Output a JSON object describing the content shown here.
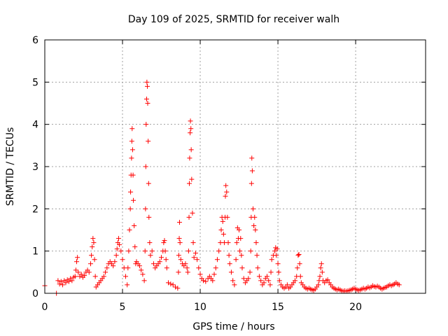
{
  "chart_data": {
    "type": "scatter",
    "title": "Day 109 of 2025, SRMTID for receiver walh",
    "xlabel": "GPS time / hours",
    "ylabel": "SRMTID / TECUs",
    "xlim": [
      0,
      24.5
    ],
    "ylim": [
      0,
      6
    ],
    "xticks": [
      0,
      5,
      10,
      15,
      20
    ],
    "yticks": [
      0,
      1,
      2,
      3,
      4,
      5,
      6
    ],
    "xtick_labels": [
      "0",
      "5",
      "10",
      "15",
      "20"
    ],
    "ytick_labels": [
      "0",
      "1",
      "2",
      "3",
      "4",
      "5",
      "6"
    ],
    "grid": true,
    "marker": "+",
    "color": "#ff0000",
    "series": [
      {
        "name": "SRMTID",
        "points": [
          [
            0.0,
            0.18
          ],
          [
            0.75,
            0.0
          ],
          [
            0.85,
            0.3
          ],
          [
            0.95,
            0.22
          ],
          [
            1.05,
            0.28
          ],
          [
            1.15,
            0.2
          ],
          [
            1.25,
            0.3
          ],
          [
            1.35,
            0.25
          ],
          [
            1.45,
            0.32
          ],
          [
            1.55,
            0.28
          ],
          [
            1.65,
            0.35
          ],
          [
            1.75,
            0.3
          ],
          [
            1.85,
            0.38
          ],
          [
            1.95,
            0.4
          ],
          [
            2.0,
            0.55
          ],
          [
            2.05,
            0.75
          ],
          [
            2.1,
            0.85
          ],
          [
            2.15,
            0.5
          ],
          [
            2.25,
            0.4
          ],
          [
            2.35,
            0.45
          ],
          [
            2.45,
            0.38
          ],
          [
            2.55,
            0.42
          ],
          [
            2.65,
            0.5
          ],
          [
            2.75,
            0.55
          ],
          [
            2.85,
            0.5
          ],
          [
            2.95,
            0.7
          ],
          [
            3.0,
            0.9
          ],
          [
            3.05,
            1.1
          ],
          [
            3.1,
            1.3
          ],
          [
            3.15,
            1.2
          ],
          [
            3.2,
            0.8
          ],
          [
            3.25,
            0.4
          ],
          [
            3.3,
            0.15
          ],
          [
            3.4,
            0.2
          ],
          [
            3.5,
            0.25
          ],
          [
            3.6,
            0.3
          ],
          [
            3.7,
            0.35
          ],
          [
            3.8,
            0.4
          ],
          [
            3.9,
            0.5
          ],
          [
            4.0,
            0.6
          ],
          [
            4.1,
            0.7
          ],
          [
            4.2,
            0.75
          ],
          [
            4.3,
            0.7
          ],
          [
            4.4,
            0.65
          ],
          [
            4.5,
            0.75
          ],
          [
            4.6,
            0.9
          ],
          [
            4.65,
            1.05
          ],
          [
            4.7,
            1.2
          ],
          [
            4.75,
            1.3
          ],
          [
            4.8,
            1.15
          ],
          [
            4.9,
            1.0
          ],
          [
            5.0,
            0.8
          ],
          [
            5.1,
            0.6
          ],
          [
            5.2,
            0.4
          ],
          [
            5.3,
            0.2
          ],
          [
            5.35,
            0.6
          ],
          [
            5.4,
            1.0
          ],
          [
            5.45,
            1.5
          ],
          [
            5.5,
            2.0
          ],
          [
            5.52,
            2.4
          ],
          [
            5.55,
            2.8
          ],
          [
            5.58,
            3.2
          ],
          [
            5.6,
            3.6
          ],
          [
            5.62,
            3.9
          ],
          [
            5.65,
            3.4
          ],
          [
            5.68,
            2.8
          ],
          [
            5.7,
            2.2
          ],
          [
            5.75,
            1.6
          ],
          [
            5.8,
            1.1
          ],
          [
            5.85,
            0.7
          ],
          [
            5.9,
            0.75
          ],
          [
            6.0,
            0.7
          ],
          [
            6.1,
            0.65
          ],
          [
            6.2,
            0.55
          ],
          [
            6.3,
            0.45
          ],
          [
            6.4,
            0.3
          ],
          [
            6.45,
            1.0
          ],
          [
            6.48,
            2.0
          ],
          [
            6.5,
            3.0
          ],
          [
            6.52,
            4.0
          ],
          [
            6.55,
            4.6
          ],
          [
            6.57,
            5.0
          ],
          [
            6.6,
            4.9
          ],
          [
            6.62,
            4.5
          ],
          [
            6.65,
            3.6
          ],
          [
            6.68,
            2.6
          ],
          [
            6.7,
            1.8
          ],
          [
            6.75,
            1.2
          ],
          [
            6.8,
            0.9
          ],
          [
            6.9,
            1.0
          ],
          [
            7.0,
            0.7
          ],
          [
            7.1,
            0.6
          ],
          [
            7.2,
            0.65
          ],
          [
            7.3,
            0.7
          ],
          [
            7.4,
            0.75
          ],
          [
            7.5,
            0.85
          ],
          [
            7.6,
            1.0
          ],
          [
            7.65,
            1.2
          ],
          [
            7.7,
            1.25
          ],
          [
            7.75,
            1.0
          ],
          [
            7.8,
            0.8
          ],
          [
            7.85,
            0.6
          ],
          [
            7.95,
            0.25
          ],
          [
            8.1,
            0.22
          ],
          [
            8.25,
            0.2
          ],
          [
            8.4,
            0.15
          ],
          [
            8.55,
            0.12
          ],
          [
            8.6,
            0.5
          ],
          [
            8.62,
            0.9
          ],
          [
            8.65,
            1.3
          ],
          [
            8.67,
            1.68
          ],
          [
            8.7,
            1.2
          ],
          [
            8.75,
            0.8
          ],
          [
            8.85,
            0.7
          ],
          [
            8.95,
            0.65
          ],
          [
            9.05,
            0.7
          ],
          [
            9.15,
            0.6
          ],
          [
            9.2,
            0.5
          ],
          [
            9.25,
            1.0
          ],
          [
            9.28,
            1.8
          ],
          [
            9.3,
            2.6
          ],
          [
            9.32,
            3.2
          ],
          [
            9.35,
            3.8
          ],
          [
            9.37,
            4.08
          ],
          [
            9.4,
            3.9
          ],
          [
            9.42,
            3.4
          ],
          [
            9.45,
            2.7
          ],
          [
            9.5,
            1.9
          ],
          [
            9.55,
            1.2
          ],
          [
            9.6,
            0.85
          ],
          [
            9.7,
            0.95
          ],
          [
            9.8,
            0.8
          ],
          [
            9.9,
            0.6
          ],
          [
            10.0,
            0.45
          ],
          [
            10.1,
            0.35
          ],
          [
            10.2,
            0.3
          ],
          [
            10.35,
            0.28
          ],
          [
            10.5,
            0.35
          ],
          [
            10.6,
            0.4
          ],
          [
            10.7,
            0.35
          ],
          [
            10.8,
            0.3
          ],
          [
            10.9,
            0.45
          ],
          [
            11.0,
            0.6
          ],
          [
            11.1,
            0.8
          ],
          [
            11.2,
            1.0
          ],
          [
            11.3,
            1.2
          ],
          [
            11.35,
            1.5
          ],
          [
            11.4,
            1.8
          ],
          [
            11.45,
            1.7
          ],
          [
            11.5,
            1.4
          ],
          [
            11.55,
            1.2
          ],
          [
            11.6,
            1.8
          ],
          [
            11.62,
            2.3
          ],
          [
            11.65,
            2.55
          ],
          [
            11.7,
            2.4
          ],
          [
            11.75,
            1.8
          ],
          [
            11.8,
            1.2
          ],
          [
            11.85,
            0.9
          ],
          [
            11.9,
            0.7
          ],
          [
            12.0,
            0.5
          ],
          [
            12.1,
            0.3
          ],
          [
            12.2,
            0.2
          ],
          [
            12.3,
            0.8
          ],
          [
            12.35,
            1.2
          ],
          [
            12.4,
            1.55
          ],
          [
            12.45,
            1.3
          ],
          [
            12.5,
            1.5
          ],
          [
            12.55,
            1.0
          ],
          [
            12.6,
            1.3
          ],
          [
            12.65,
            0.9
          ],
          [
            12.7,
            0.6
          ],
          [
            12.8,
            0.35
          ],
          [
            12.9,
            0.25
          ],
          [
            13.0,
            0.3
          ],
          [
            13.1,
            0.35
          ],
          [
            13.2,
            0.5
          ],
          [
            13.25,
            1.0
          ],
          [
            13.28,
            1.8
          ],
          [
            13.3,
            2.6
          ],
          [
            13.32,
            3.2
          ],
          [
            13.35,
            2.9
          ],
          [
            13.4,
            2.0
          ],
          [
            13.45,
            1.6
          ],
          [
            13.5,
            1.8
          ],
          [
            13.55,
            1.5
          ],
          [
            13.6,
            1.2
          ],
          [
            13.65,
            0.9
          ],
          [
            13.7,
            0.6
          ],
          [
            13.8,
            0.4
          ],
          [
            13.9,
            0.3
          ],
          [
            14.0,
            0.2
          ],
          [
            14.1,
            0.25
          ],
          [
            14.2,
            0.35
          ],
          [
            14.3,
            0.4
          ],
          [
            14.4,
            0.3
          ],
          [
            14.5,
            0.2
          ],
          [
            14.55,
            0.5
          ],
          [
            14.6,
            0.8
          ],
          [
            14.7,
            0.9
          ],
          [
            14.8,
            1.0
          ],
          [
            14.85,
            1.08
          ],
          [
            14.9,
            0.9
          ],
          [
            14.95,
            1.05
          ],
          [
            15.0,
            0.7
          ],
          [
            15.05,
            0.5
          ],
          [
            15.1,
            0.3
          ],
          [
            15.2,
            0.2
          ],
          [
            15.3,
            0.15
          ],
          [
            15.4,
            0.12
          ],
          [
            15.5,
            0.15
          ],
          [
            15.6,
            0.2
          ],
          [
            15.7,
            0.12
          ],
          [
            15.8,
            0.15
          ],
          [
            15.9,
            0.2
          ],
          [
            16.0,
            0.25
          ],
          [
            16.1,
            0.3
          ],
          [
            16.2,
            0.4
          ],
          [
            16.25,
            0.6
          ],
          [
            16.3,
            0.9
          ],
          [
            16.35,
            0.92
          ],
          [
            16.4,
            0.7
          ],
          [
            16.45,
            0.4
          ],
          [
            16.5,
            0.25
          ],
          [
            16.6,
            0.2
          ],
          [
            16.7,
            0.15
          ],
          [
            16.8,
            0.12
          ],
          [
            16.9,
            0.1
          ],
          [
            17.0,
            0.12
          ],
          [
            17.1,
            0.1
          ],
          [
            17.2,
            0.08
          ],
          [
            17.3,
            0.07
          ],
          [
            17.4,
            0.1
          ],
          [
            17.5,
            0.15
          ],
          [
            17.6,
            0.2
          ],
          [
            17.65,
            0.3
          ],
          [
            17.7,
            0.4
          ],
          [
            17.75,
            0.6
          ],
          [
            17.8,
            0.7
          ],
          [
            17.85,
            0.5
          ],
          [
            17.9,
            0.3
          ],
          [
            18.0,
            0.25
          ],
          [
            18.1,
            0.3
          ],
          [
            18.2,
            0.32
          ],
          [
            18.3,
            0.25
          ],
          [
            18.4,
            0.2
          ],
          [
            18.5,
            0.15
          ],
          [
            18.6,
            0.12
          ],
          [
            18.7,
            0.1
          ],
          [
            18.8,
            0.08
          ],
          [
            18.9,
            0.1
          ],
          [
            19.0,
            0.08
          ],
          [
            19.1,
            0.06
          ],
          [
            19.2,
            0.05
          ],
          [
            19.3,
            0.06
          ],
          [
            19.4,
            0.05
          ],
          [
            19.5,
            0.06
          ],
          [
            19.6,
            0.07
          ],
          [
            19.7,
            0.08
          ],
          [
            19.8,
            0.1
          ],
          [
            19.9,
            0.12
          ],
          [
            20.0,
            0.1
          ],
          [
            20.1,
            0.08
          ],
          [
            20.2,
            0.07
          ],
          [
            20.3,
            0.08
          ],
          [
            20.4,
            0.1
          ],
          [
            20.5,
            0.12
          ],
          [
            20.6,
            0.1
          ],
          [
            20.7,
            0.12
          ],
          [
            20.8,
            0.15
          ],
          [
            20.9,
            0.13
          ],
          [
            21.0,
            0.15
          ],
          [
            21.1,
            0.18
          ],
          [
            21.2,
            0.16
          ],
          [
            21.3,
            0.15
          ],
          [
            21.4,
            0.17
          ],
          [
            21.5,
            0.15
          ],
          [
            21.6,
            0.12
          ],
          [
            21.7,
            0.1
          ],
          [
            21.8,
            0.12
          ],
          [
            21.9,
            0.14
          ],
          [
            22.0,
            0.15
          ],
          [
            22.1,
            0.18
          ],
          [
            22.2,
            0.2
          ],
          [
            22.3,
            0.18
          ],
          [
            22.4,
            0.2
          ],
          [
            22.5,
            0.22
          ],
          [
            22.6,
            0.25
          ],
          [
            22.7,
            0.22
          ],
          [
            22.8,
            0.2
          ]
        ]
      }
    ]
  }
}
